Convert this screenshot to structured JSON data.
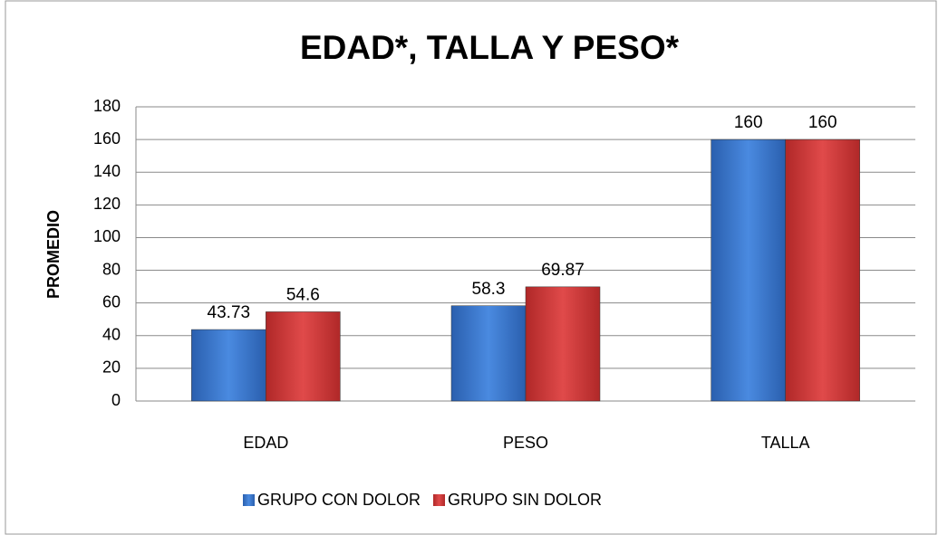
{
  "chart_data": {
    "type": "bar",
    "title": "EDAD*, TALLA Y PESO*",
    "ylabel": "PROMEDIO",
    "categories": [
      "EDAD",
      "PESO",
      "TALLA"
    ],
    "series": [
      {
        "name": "GRUPO CON DOLOR",
        "color": "#3a78d0",
        "values": [
          43.73,
          58.3,
          160
        ]
      },
      {
        "name": "GRUPO SIN DOLOR",
        "color": "#d23a3a",
        "values": [
          54.6,
          69.87,
          160
        ]
      }
    ],
    "ylim": [
      0,
      180
    ],
    "yticks": [
      0,
      20,
      40,
      60,
      80,
      100,
      120,
      140,
      160,
      180
    ],
    "grid": true,
    "legend": "bottom"
  }
}
